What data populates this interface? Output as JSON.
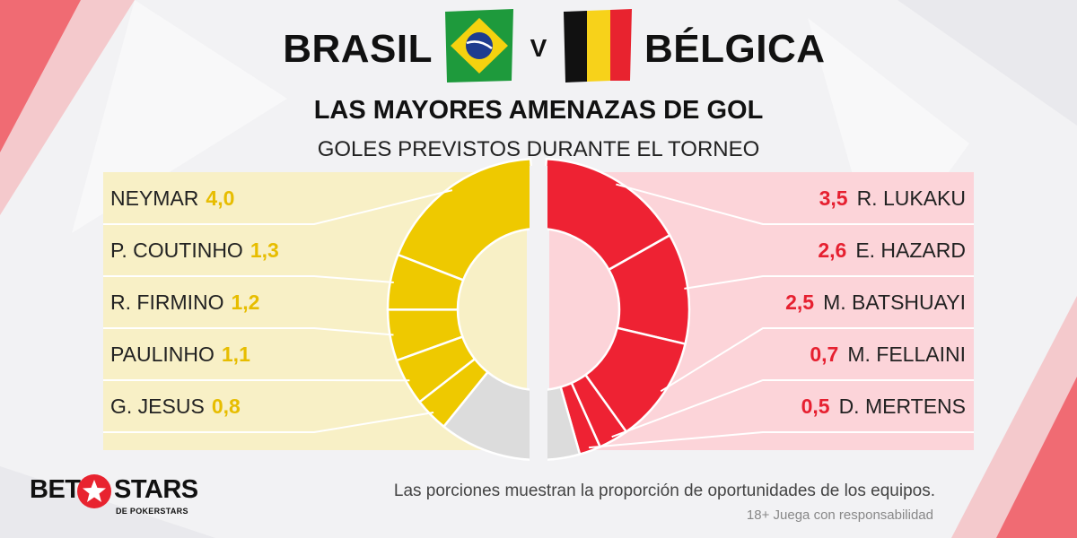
{
  "header": {
    "team_left": "BRASIL",
    "versus": "V",
    "team_right": "BÉLGICA",
    "title": "LAS MAYORES AMENAZAS DE GOL",
    "subtitle": "GOLES PREVISTOS DURANTE EL TORNEO"
  },
  "chart_data": {
    "type": "donut",
    "title": "LAS MAYORES AMENAZAS DE GOL",
    "subtitle": "GOLES PREVISTOS DURANTE EL TORNEO",
    "series": [
      {
        "name": "BRASIL",
        "color": "#eec900",
        "players": [
          {
            "name": "NEYMAR",
            "value": 4.0,
            "label": "4,0"
          },
          {
            "name": "P. COUTINHO",
            "value": 1.3,
            "label": "1,3"
          },
          {
            "name": "R. FIRMINO",
            "value": 1.2,
            "label": "1,2"
          },
          {
            "name": "PAULINHO",
            "value": 1.1,
            "label": "1,1"
          },
          {
            "name": "G. JESUS",
            "value": 0.8,
            "label": "0,8"
          }
        ]
      },
      {
        "name": "BÉLGICA",
        "color": "#ee2233",
        "players": [
          {
            "name": "R. LUKAKU",
            "value": 3.5,
            "label": "3,5"
          },
          {
            "name": "E. HAZARD",
            "value": 2.6,
            "label": "2,6"
          },
          {
            "name": "M. BATSHUAYI",
            "value": 2.5,
            "label": "2,5"
          },
          {
            "name": "M. FELLAINI",
            "value": 0.7,
            "label": "0,7"
          },
          {
            "name": "D. MERTENS",
            "value": 0.5,
            "label": "0,5"
          }
        ]
      }
    ],
    "remainder_color": "#dcdcdc"
  },
  "footer": {
    "logo_bet": "BET",
    "logo_stars": "STARS",
    "logo_sub": "DE POKERSTARS",
    "note": "Las porciones muestran la proporción de oportunidades de los equipos.",
    "disclaimer": "18+ Juega con responsabilidad"
  },
  "colors": {
    "accent_red": "#e62030",
    "accent_yellow": "#e7bd00",
    "panel_yellow": "#f8f0c6",
    "panel_pink": "#fcd4d9"
  },
  "icons": {
    "flag_left": "brazil-flag-icon",
    "flag_right": "belgium-flag-icon",
    "logo_star": "star-icon"
  }
}
